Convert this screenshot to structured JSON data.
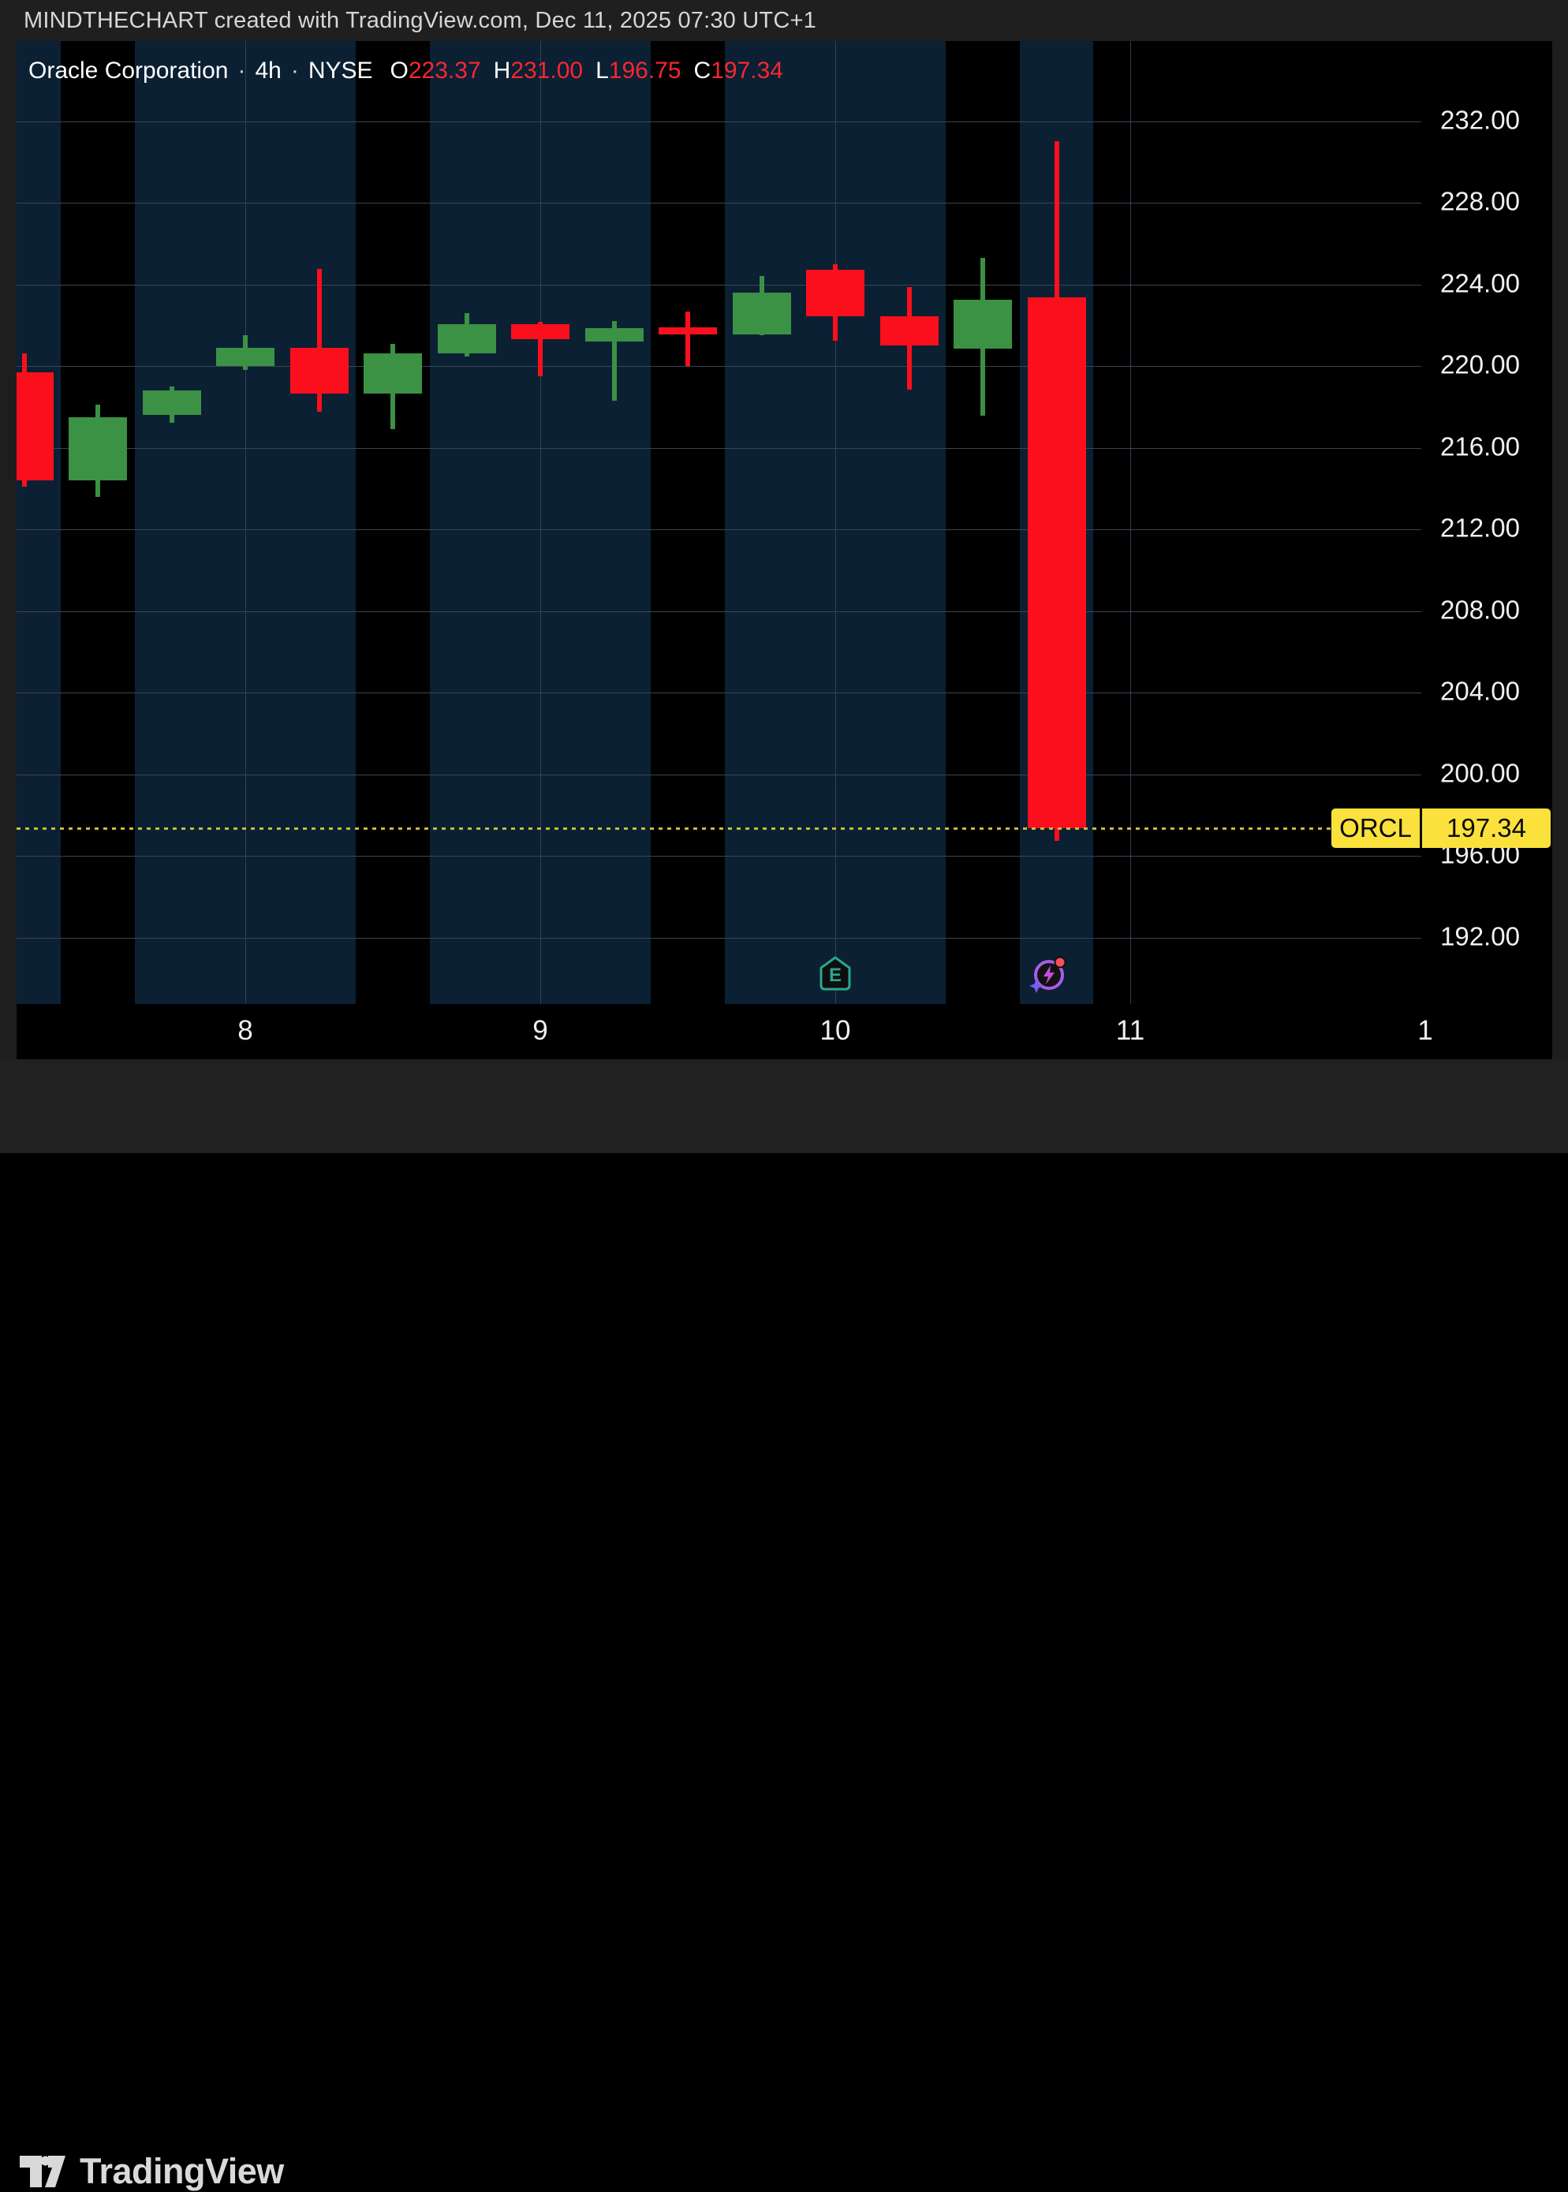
{
  "topbar": {
    "text": "MINDTHECHART created with TradingView.com, Dec 11, 2025 07:30 UTC+1"
  },
  "legend": {
    "symbol": "Oracle Corporation",
    "sep": "·",
    "interval": "4h",
    "exchange": "NYSE",
    "o_label": "O",
    "o_value": "223.37",
    "h_label": "H",
    "h_value": "231.00",
    "l_label": "L",
    "l_value": "196.75",
    "c_label": "C",
    "c_value": "197.34"
  },
  "price_tag": {
    "symbol": "ORCL",
    "price": "197.34"
  },
  "icons": {
    "earnings_label": "E",
    "ai_marker": "sparkle-lightning-icon"
  },
  "footer": {
    "brand": "TradingView"
  },
  "colors": {
    "up": "#3b9144",
    "down": "#fb0f1c",
    "navy_band": "#0b2033",
    "black_band": "#000000",
    "grid": "#3b4453",
    "topbar_bg": "#1f1f1f",
    "footer_bg": "#212121",
    "axis_text": "#eef0f3",
    "ohlc_value_red": "#fa2631",
    "tag_bg": "#fbe13c",
    "dotted_line": "#ccb93f",
    "badge_teal": "#2ca58d",
    "icon_purple": "#a85ce8",
    "icon_star": "#7b5cf0",
    "icon_dot": "#fa4f57",
    "logo_gray": "#d9d9d9"
  },
  "chart_data": {
    "type": "candlestick",
    "title": "Oracle Corporation",
    "ticker": "ORCL",
    "interval": "4h",
    "exchange": "NYSE",
    "header_ohlc": {
      "open": 223.37,
      "high": 231.0,
      "low": 196.75,
      "close": 197.34
    },
    "last_price": 197.34,
    "y_axis": {
      "min": 192,
      "max": 232,
      "step": 4,
      "grid": true,
      "side": "right",
      "labels": [
        "232.00",
        "228.00",
        "224.00",
        "220.00",
        "216.00",
        "212.00",
        "208.00",
        "204.00",
        "200.00",
        "196.00",
        "192.00"
      ]
    },
    "x_axis": {
      "labels": [
        "8",
        "9",
        "10",
        "11",
        "1"
      ],
      "unit": "day of Dec 2025"
    },
    "candles": [
      {
        "o": 219.7,
        "h": 220.6,
        "l": 214.1,
        "c": 214.4
      },
      {
        "o": 214.4,
        "h": 218.1,
        "l": 213.6,
        "c": 217.5
      },
      {
        "o": 217.6,
        "h": 219.0,
        "l": 217.2,
        "c": 218.8
      },
      {
        "o": 220.0,
        "h": 221.5,
        "l": 219.8,
        "c": 220.9
      },
      {
        "o": 220.9,
        "h": 224.75,
        "l": 217.75,
        "c": 218.65
      },
      {
        "o": 218.65,
        "h": 221.1,
        "l": 216.9,
        "c": 220.6
      },
      {
        "o": 220.6,
        "h": 222.6,
        "l": 220.45,
        "c": 222.05
      },
      {
        "o": 222.05,
        "h": 222.15,
        "l": 219.5,
        "c": 221.3
      },
      {
        "o": 221.2,
        "h": 222.2,
        "l": 218.3,
        "c": 221.85
      },
      {
        "o": 221.9,
        "h": 222.65,
        "l": 220.0,
        "c": 221.55
      },
      {
        "o": 221.55,
        "h": 224.4,
        "l": 221.5,
        "c": 223.6
      },
      {
        "o": 224.7,
        "h": 225.0,
        "l": 221.25,
        "c": 222.45
      },
      {
        "o": 222.45,
        "h": 223.85,
        "l": 218.85,
        "c": 221.0
      },
      {
        "o": 220.85,
        "h": 225.3,
        "l": 217.55,
        "c": 223.25
      },
      {
        "o": 223.37,
        "h": 231.0,
        "l": 196.75,
        "c": 197.34
      }
    ],
    "shaded_sessions": [
      [
        0,
        0
      ],
      [
        2,
        4
      ],
      [
        6,
        8
      ],
      [
        10,
        12
      ],
      [
        14,
        14
      ]
    ],
    "markers": [
      {
        "type": "earnings",
        "candle_index": 11
      },
      {
        "type": "ai-event",
        "candle_index": 14
      }
    ]
  }
}
